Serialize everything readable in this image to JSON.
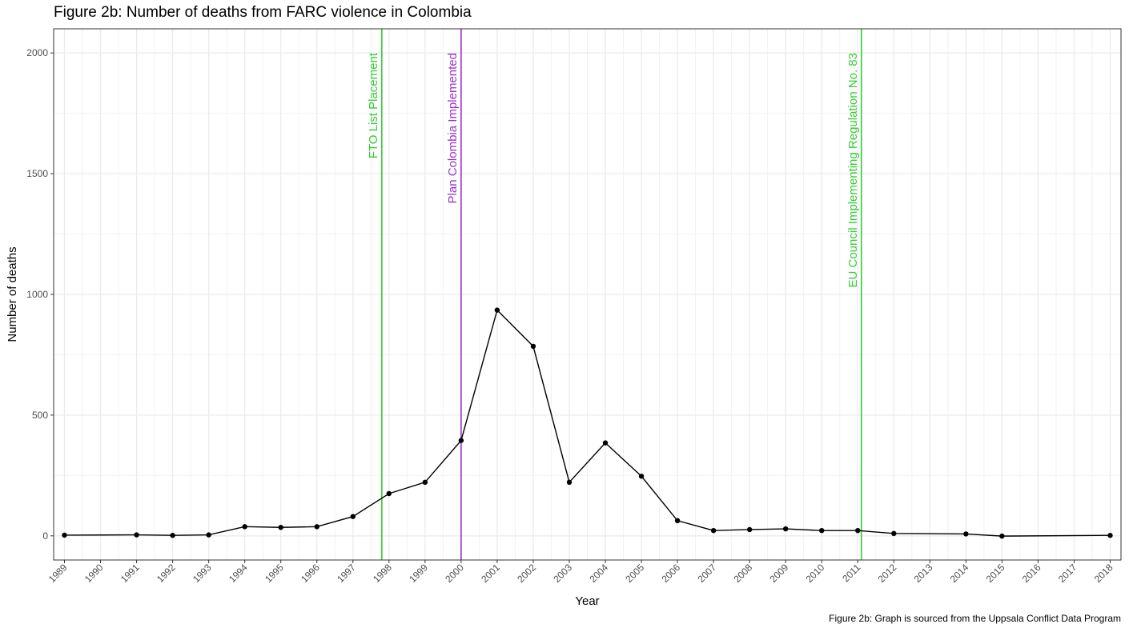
{
  "chart_data": {
    "type": "line",
    "title": "Figure 2b: Number of deaths from FARC violence in Colombia",
    "caption": "Figure 2b: Graph is sourced from the Uppsala Conflict Data Program",
    "xlabel": "Year",
    "ylabel": "Number of deaths",
    "xlim": [
      1988.7,
      2018.3
    ],
    "ylim": [
      -100,
      2100
    ],
    "x_ticks": [
      1989,
      1990,
      1991,
      1992,
      1993,
      1994,
      1995,
      1996,
      1997,
      1998,
      1999,
      2000,
      2001,
      2002,
      2003,
      2004,
      2005,
      2006,
      2007,
      2008,
      2009,
      2010,
      2011,
      2012,
      2013,
      2014,
      2015,
      2016,
      2017,
      2018
    ],
    "y_ticks": [
      0,
      500,
      1000,
      1500,
      2000
    ],
    "grid": true,
    "series": [
      {
        "color": "#000000",
        "points": [
          {
            "x": 1989,
            "y": 3
          },
          {
            "x": 1991,
            "y": 4
          },
          {
            "x": 1992,
            "y": 2
          },
          {
            "x": 1993,
            "y": 4
          },
          {
            "x": 1994,
            "y": 38
          },
          {
            "x": 1995,
            "y": 35
          },
          {
            "x": 1996,
            "y": 38
          },
          {
            "x": 1997,
            "y": 80
          },
          {
            "x": 1998,
            "y": 175
          },
          {
            "x": 1999,
            "y": 222
          },
          {
            "x": 2000,
            "y": 395
          },
          {
            "x": 2001,
            "y": 935
          },
          {
            "x": 2002,
            "y": 785
          },
          {
            "x": 2003,
            "y": 222
          },
          {
            "x": 2004,
            "y": 385
          },
          {
            "x": 2005,
            "y": 247
          },
          {
            "x": 2006,
            "y": 63
          },
          {
            "x": 2007,
            "y": 22
          },
          {
            "x": 2008,
            "y": 26
          },
          {
            "x": 2009,
            "y": 29
          },
          {
            "x": 2010,
            "y": 22
          },
          {
            "x": 2011,
            "y": 22
          },
          {
            "x": 2012,
            "y": 10
          },
          {
            "x": 2014,
            "y": 8
          },
          {
            "x": 2015,
            "y": -1
          },
          {
            "x": 2018,
            "y": 2
          }
        ]
      }
    ],
    "annotations": [
      {
        "x": 1997.8,
        "label": "FTO List Placement",
        "color": "#33cc33"
      },
      {
        "x": 2000.0,
        "label": "Plan Colombia Implemented",
        "color": "#9933cc"
      },
      {
        "x": 2011.1,
        "label": "EU Council Implementing Regulation No. 83",
        "color": "#33cc33"
      }
    ]
  }
}
